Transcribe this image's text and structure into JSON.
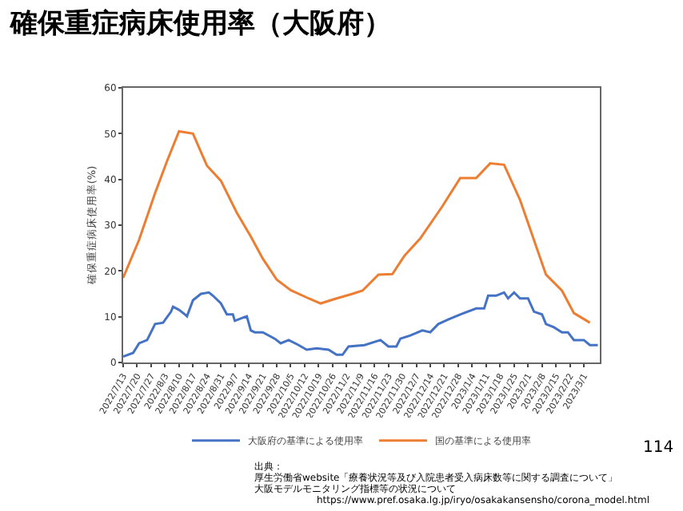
{
  "chart_data": {
    "type": "line",
    "title": "確保重症病床使用率（大阪府）",
    "ylabel": "確保重症病床使用率(%)",
    "xlim": [
      "2022-07-13",
      "2023-03-09"
    ],
    "xticks": [
      {
        "value": "2022-07-13",
        "label": "2022/7/13"
      },
      {
        "value": "2022-07-20",
        "label": "2022/7/20"
      },
      {
        "value": "2022-07-27",
        "label": "2022/7/27"
      },
      {
        "value": "2022-08-03",
        "label": "2022/8/3"
      },
      {
        "value": "2022-08-10",
        "label": "2022/8/10"
      },
      {
        "value": "2022-08-17",
        "label": "2022/8/17"
      },
      {
        "value": "2022-08-24",
        "label": "2022/8/24"
      },
      {
        "value": "2022-08-31",
        "label": "2022/8/31"
      },
      {
        "value": "2022-09-07",
        "label": "2022/9/7"
      },
      {
        "value": "2022-09-14",
        "label": "2022/9/14"
      },
      {
        "value": "2022-09-21",
        "label": "2022/9/21"
      },
      {
        "value": "2022-09-28",
        "label": "2022/9/28"
      },
      {
        "value": "2022-10-05",
        "label": "2022/10/5"
      },
      {
        "value": "2022-10-12",
        "label": "2022/10/12"
      },
      {
        "value": "2022-10-19",
        "label": "2022/10/19"
      },
      {
        "value": "2022-10-26",
        "label": "2022/10/26"
      },
      {
        "value": "2022-11-02",
        "label": "2022/11/2"
      },
      {
        "value": "2022-11-09",
        "label": "2022/11/9"
      },
      {
        "value": "2022-11-16",
        "label": "2022/11/16"
      },
      {
        "value": "2022-11-23",
        "label": "2022/11/23"
      },
      {
        "value": "2022-11-30",
        "label": "2022/11/30"
      },
      {
        "value": "2022-12-07",
        "label": "2022/12/7"
      },
      {
        "value": "2022-12-14",
        "label": "2022/12/14"
      },
      {
        "value": "2022-12-21",
        "label": "2022/12/21"
      },
      {
        "value": "2022-12-28",
        "label": "2022/12/28"
      },
      {
        "value": "2023-01-04",
        "label": "2023/1/4"
      },
      {
        "value": "2023-01-11",
        "label": "2023/1/11"
      },
      {
        "value": "2023-01-18",
        "label": "2023/1/18"
      },
      {
        "value": "2023-01-25",
        "label": "2023/1/25"
      },
      {
        "value": "2023-02-01",
        "label": "2023/2/1"
      },
      {
        "value": "2023-02-08",
        "label": "2023/2/8"
      },
      {
        "value": "2023-02-15",
        "label": "2023/2/15"
      },
      {
        "value": "2023-02-22",
        "label": "2023/2/22"
      },
      {
        "value": "2023-03-01",
        "label": "2023/3/1"
      }
    ],
    "ylim": [
      0,
      60
    ],
    "yticks": [
      0,
      10,
      20,
      30,
      40,
      50,
      60
    ],
    "grid": false,
    "legend": "bottom",
    "marker": "none",
    "line_style": "solid",
    "series": [
      {
        "name": "大阪府の基準による使用率",
        "color": "#4472c4",
        "x": [
          "2022-07-13",
          "2022-07-18",
          "2022-07-21",
          "2022-07-25",
          "2022-07-29",
          "2022-08-02",
          "2022-08-06",
          "2022-08-07",
          "2022-08-10",
          "2022-08-13",
          "2022-08-14",
          "2022-08-17",
          "2022-08-21",
          "2022-08-25",
          "2022-08-27",
          "2022-08-31",
          "2022-09-03",
          "2022-09-06",
          "2022-09-07",
          "2022-09-11",
          "2022-09-13",
          "2022-09-15",
          "2022-09-17",
          "2022-09-21",
          "2022-09-27",
          "2022-09-30",
          "2022-10-04",
          "2022-10-09",
          "2022-10-13",
          "2022-10-18",
          "2022-10-24",
          "2022-10-28",
          "2022-10-31",
          "2022-11-03",
          "2022-11-11",
          "2022-11-19",
          "2022-11-23",
          "2022-11-27",
          "2022-11-29",
          "2022-12-04",
          "2022-12-10",
          "2022-12-14",
          "2022-12-18",
          "2022-12-23",
          "2022-12-29",
          "2023-01-06",
          "2023-01-10",
          "2023-01-12",
          "2023-01-16",
          "2023-01-20",
          "2023-01-22",
          "2023-01-25",
          "2023-01-28",
          "2023-02-01",
          "2023-02-04",
          "2023-02-08",
          "2023-02-10",
          "2023-02-14",
          "2023-02-18",
          "2023-02-21",
          "2023-02-24",
          "2023-03-01",
          "2023-03-04",
          "2023-03-08"
        ],
        "values": [
          1.3,
          2.1,
          4.2,
          4.9,
          8.4,
          8.7,
          11.1,
          12.2,
          11.5,
          10.5,
          10.1,
          13.6,
          15.0,
          15.3,
          14.6,
          12.9,
          10.5,
          10.5,
          9.1,
          9.8,
          10.1,
          7.0,
          6.6,
          6.6,
          5.2,
          4.2,
          4.9,
          3.8,
          2.8,
          3.1,
          2.8,
          1.7,
          1.7,
          3.5,
          3.8,
          4.9,
          3.5,
          3.5,
          5.2,
          5.9,
          7.0,
          6.6,
          8.4,
          9.4,
          10.5,
          11.8,
          11.8,
          14.6,
          14.6,
          15.3,
          14.0,
          15.3,
          14.0,
          14.0,
          11.1,
          10.5,
          8.4,
          7.7,
          6.6,
          6.6,
          4.9,
          4.9,
          3.8,
          3.8
        ]
      },
      {
        "name": "国の基準による使用率",
        "color": "#ed7d31",
        "x": [
          "2022-07-13",
          "2022-07-21",
          "2022-07-29",
          "2022-08-04",
          "2022-08-10",
          "2022-08-17",
          "2022-08-24",
          "2022-08-31",
          "2022-09-08",
          "2022-09-15",
          "2022-09-21",
          "2022-09-28",
          "2022-10-05",
          "2022-10-14",
          "2022-10-20",
          "2022-10-28",
          "2022-11-05",
          "2022-11-10",
          "2022-11-18",
          "2022-11-25",
          "2022-12-01",
          "2022-12-09",
          "2022-12-20",
          "2022-12-29",
          "2023-01-06",
          "2023-01-13",
          "2023-01-20",
          "2023-01-28",
          "2023-02-10",
          "2023-02-18",
          "2023-02-24",
          "2023-03-04"
        ],
        "values": [
          18.5,
          26.8,
          37.0,
          44.0,
          50.5,
          50.0,
          43.0,
          39.7,
          32.7,
          27.5,
          22.7,
          18.1,
          15.8,
          14.0,
          12.9,
          14.0,
          15.0,
          15.7,
          19.2,
          19.3,
          23.3,
          27.1,
          34.1,
          40.3,
          40.3,
          43.5,
          43.2,
          35.5,
          19.2,
          15.7,
          10.8,
          8.7
        ]
      }
    ],
    "annotations": [
      "出典：",
      "厚生労働省website「療養状況等及び入院患者受入病床数等に関する調査について」",
      "大阪モデルモニタリング指標等の状況について",
      "https://www.pref.osaka.lg.jp/iryo/osakakansensho/corona_model.html",
      "114"
    ]
  }
}
